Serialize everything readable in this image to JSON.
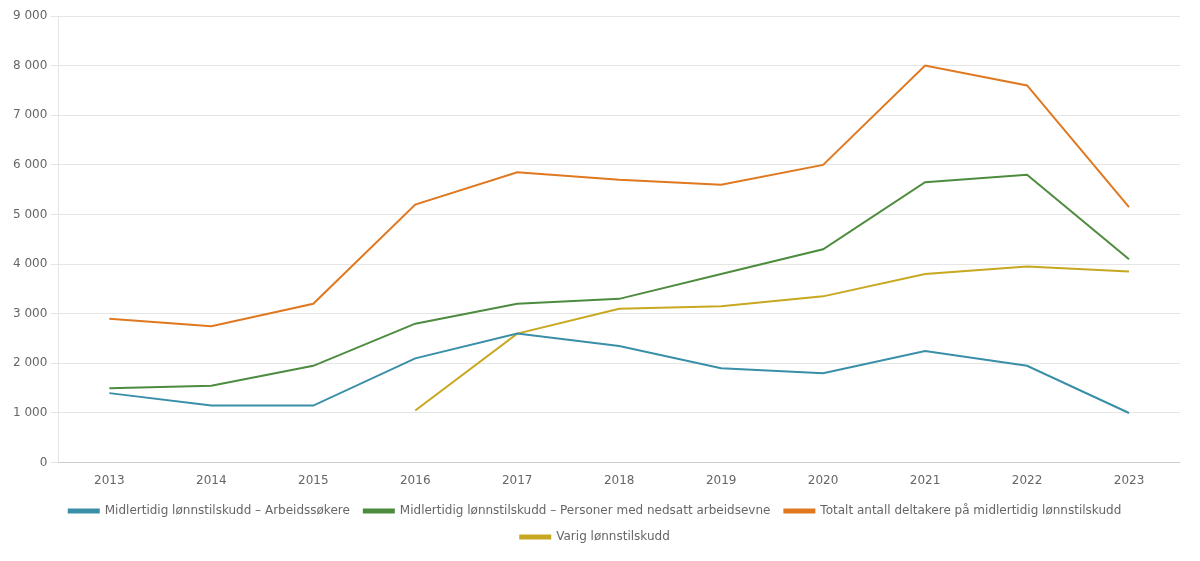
{
  "chart_data": {
    "type": "line",
    "categories": [
      "2013",
      "2014",
      "2015",
      "2016",
      "2017",
      "2018",
      "2019",
      "2020",
      "2021",
      "2022",
      "2023"
    ],
    "series": [
      {
        "name": "Midlertidig lønnstilskudd – Arbeidssøkere",
        "color": "#3a8fa8",
        "values": [
          1400,
          1150,
          1150,
          2100,
          2600,
          2350,
          1900,
          1800,
          2250,
          1950,
          1000
        ]
      },
      {
        "name": "Midlertidig lønnstilskudd – Personer med nedsatt arbeidsevne",
        "color": "#4d8c3f",
        "values": [
          1500,
          1550,
          1950,
          2800,
          3200,
          3300,
          3800,
          4300,
          5650,
          5800,
          4100
        ]
      },
      {
        "name": "Totalt antall deltakere på midlertidig lønnstilskudd",
        "color": "#e07820",
        "values": [
          2900,
          2750,
          3200,
          5200,
          5850,
          5700,
          5600,
          6000,
          8000,
          7600,
          5150
        ]
      },
      {
        "name": "Varig lønnstilskudd",
        "color": "#c8a820",
        "values": [
          null,
          null,
          null,
          1050,
          2600,
          3100,
          3150,
          3350,
          3800,
          3950,
          3850
        ]
      }
    ],
    "ylim": [
      0,
      9000
    ],
    "yticks": [
      0,
      {
        "value": 1000,
        "label": "1 000"
      },
      {
        "value": 2000,
        "label": "2 000"
      },
      {
        "value": 3000,
        "label": "3 000"
      },
      {
        "value": 4000,
        "label": "4 000"
      },
      {
        "value": 5000,
        "label": "5 000"
      },
      {
        "value": 6000,
        "label": "6 000"
      },
      {
        "value": 7000,
        "label": "7 000"
      },
      {
        "value": 8000,
        "label": "8 000"
      },
      {
        "value": 9000,
        "label": "9 000"
      }
    ],
    "grid": true,
    "legend": "bottom"
  }
}
